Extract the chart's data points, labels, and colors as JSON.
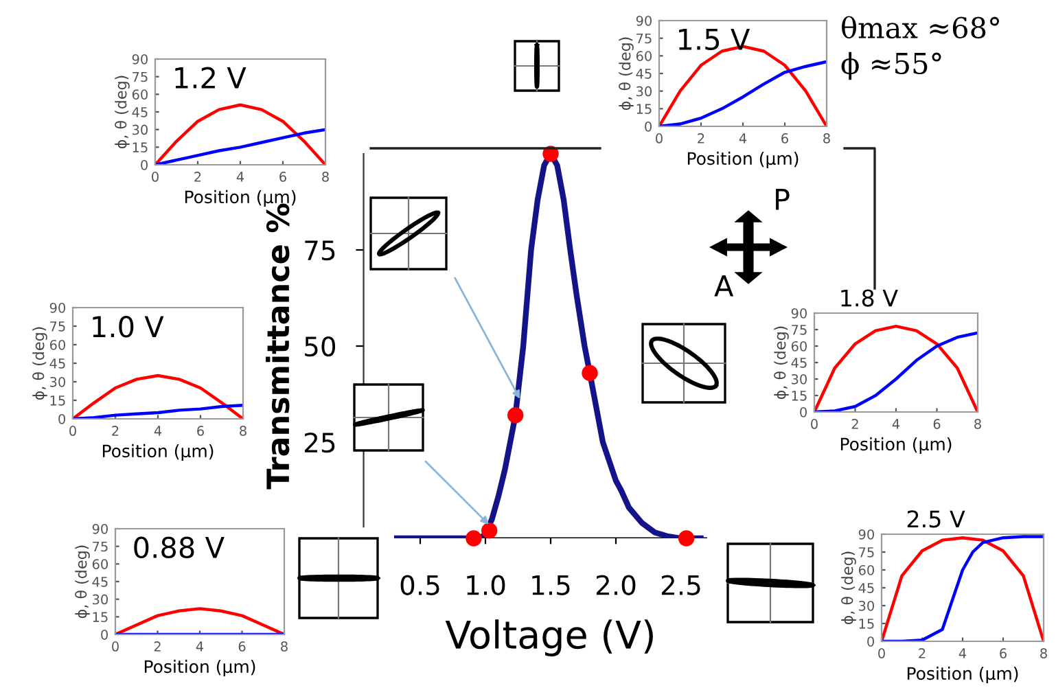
{
  "chart_data": [
    {
      "type": "line",
      "xlabel": "Voltage (V)",
      "ylabel": "Transmittance %",
      "xlim": [
        0.3,
        2.7
      ],
      "ylim": [
        0,
        100
      ],
      "xticks": [
        {
          "value": 0.5,
          "label": "0.5"
        },
        {
          "value": 1,
          "label": "1.0"
        },
        {
          "value": 1.5,
          "label": "1.5"
        },
        {
          "value": 2,
          "label": "2.0"
        },
        {
          "value": 2.5,
          "label": "2.5"
        }
      ],
      "yticks": [
        25,
        50,
        75
      ],
      "grid": false,
      "legend": false,
      "annotations": [
        "P",
        "A"
      ],
      "series": [
        {
          "type": "line",
          "color": "#14148a",
          "x": [
            0.3,
            0.95,
            1.0,
            1.05,
            1.1,
            1.15,
            1.19,
            1.23,
            1.29,
            1.35,
            1.4,
            1.45,
            1.5,
            1.55,
            1.6,
            1.65,
            1.7,
            1.76,
            1.8,
            1.9,
            2.0,
            2.04,
            2.1,
            2.2,
            2.3,
            2.4,
            2.5,
            2.65
          ],
          "values": [
            0,
            0,
            1,
            5,
            11,
            18,
            25,
            32,
            50,
            75,
            88,
            97,
            100,
            97,
            88,
            75,
            63,
            50,
            43,
            25,
            15,
            12.5,
            8,
            4,
            1.5,
            0.5,
            0,
            0
          ]
        },
        {
          "type": "scatter",
          "color": "#ff0000",
          "marker": "circle",
          "x": [
            0.91,
            1.03,
            1.23,
            1.5,
            1.8,
            2.54
          ],
          "values": [
            0,
            2,
            32,
            100,
            43,
            0
          ]
        }
      ]
    },
    {
      "type": "line",
      "title": "1.2 V",
      "xlabel": "Position (μm)",
      "ylabel": "ϕ, θ (deg)",
      "xlim": [
        0,
        8
      ],
      "ylim": [
        0,
        90
      ],
      "xticks": [
        0,
        2,
        4,
        6,
        8
      ],
      "yticks": [
        0,
        15,
        30,
        45,
        60,
        75,
        90
      ],
      "x": [
        0,
        1,
        2,
        3,
        4,
        5,
        6,
        7,
        8
      ],
      "series": [
        {
          "color": "#ff0000",
          "values": [
            0,
            20,
            37,
            47,
            51,
            47,
            37,
            20,
            0
          ]
        },
        {
          "color": "#0000ff",
          "values": [
            0,
            4,
            8,
            12,
            15,
            19,
            23,
            27,
            30
          ]
        }
      ]
    },
    {
      "type": "line",
      "title": "1.0 V",
      "xlabel": "Position (μm)",
      "ylabel": "ϕ, θ (deg)",
      "xlim": [
        0,
        8
      ],
      "ylim": [
        0,
        90
      ],
      "xticks": [
        0,
        2,
        4,
        6,
        8
      ],
      "yticks": [
        0,
        15,
        30,
        45,
        60,
        75,
        90
      ],
      "x": [
        0,
        1,
        2,
        3,
        4,
        5,
        6,
        7,
        8
      ],
      "series": [
        {
          "color": "#ff0000",
          "values": [
            0,
            13,
            25,
            32,
            35,
            32,
            25,
            13,
            0
          ]
        },
        {
          "color": "#0000ff",
          "values": [
            0,
            1,
            3,
            4,
            5,
            7,
            8,
            10,
            11
          ]
        }
      ]
    },
    {
      "type": "line",
      "title": "0.88 V",
      "xlabel": "Position (μm)",
      "ylabel": "ϕ, θ (deg)",
      "xlim": [
        0,
        8
      ],
      "ylim": [
        0,
        90
      ],
      "xticks": [
        0,
        2,
        4,
        6,
        8
      ],
      "yticks": [
        0,
        15,
        30,
        45,
        60,
        75,
        90
      ],
      "x": [
        0,
        1,
        2,
        3,
        4,
        5,
        6,
        7,
        8
      ],
      "series": [
        {
          "color": "#ff0000",
          "values": [
            0,
            8,
            16,
            20,
            22,
            20,
            16,
            8,
            0
          ]
        },
        {
          "color": "#0000ff",
          "values": [
            0,
            0,
            0,
            0,
            0,
            0,
            0,
            0,
            0
          ]
        }
      ]
    },
    {
      "type": "line",
      "title": "1.5 V",
      "xlabel": "Position (μm)",
      "ylabel": "ϕ, θ (deg)",
      "xlim": [
        0,
        8
      ],
      "ylim": [
        0,
        90
      ],
      "xticks": [
        0,
        2,
        4,
        6,
        8
      ],
      "yticks": [
        0,
        15,
        30,
        45,
        60,
        75,
        90
      ],
      "x": [
        0,
        1,
        2,
        3,
        4,
        5,
        6,
        7,
        8
      ],
      "annotations": [
        "θmax ≈68°",
        "ϕ ≈55°"
      ],
      "series": [
        {
          "color": "#ff0000",
          "values": [
            0,
            30,
            52,
            64,
            68,
            64,
            52,
            30,
            0
          ]
        },
        {
          "color": "#0000ff",
          "values": [
            0,
            2,
            7,
            15,
            25,
            36,
            46,
            51,
            55
          ]
        }
      ]
    },
    {
      "type": "line",
      "title": "1.8 V",
      "xlabel": "Position (μm)",
      "ylabel": "ϕ, θ (deg)",
      "xlim": [
        0,
        8
      ],
      "ylim": [
        0,
        90
      ],
      "xticks": [
        0,
        2,
        4,
        6,
        8
      ],
      "yticks": [
        0,
        15,
        30,
        45,
        60,
        75,
        90
      ],
      "x": [
        0,
        1,
        2,
        3,
        4,
        5,
        6,
        7,
        8
      ],
      "series": [
        {
          "color": "#ff0000",
          "values": [
            0,
            40,
            62,
            74,
            78,
            74,
            62,
            40,
            0
          ]
        },
        {
          "color": "#0000ff",
          "values": [
            0,
            1,
            5,
            15,
            30,
            47,
            60,
            68,
            72
          ]
        }
      ]
    },
    {
      "type": "line",
      "title": "2.5 V",
      "xlabel": "Position (μm)",
      "ylabel": "ϕ, θ (deg)",
      "xlim": [
        0,
        8
      ],
      "ylim": [
        0,
        90
      ],
      "xticks": [
        0,
        2,
        4,
        6,
        8
      ],
      "yticks": [
        0,
        15,
        30,
        45,
        60,
        75,
        90
      ],
      "x": [
        0,
        1,
        2,
        3,
        3.5,
        4,
        4.5,
        5,
        6,
        7,
        8
      ],
      "series": [
        {
          "color": "#ff0000",
          "values": [
            0,
            55,
            76,
            85,
            86,
            87,
            86,
            85,
            76,
            55,
            0
          ]
        },
        {
          "color": "#0000ff",
          "values": [
            0,
            0,
            1,
            10,
            35,
            60,
            75,
            83,
            87,
            88,
            88
          ]
        }
      ]
    }
  ]
}
